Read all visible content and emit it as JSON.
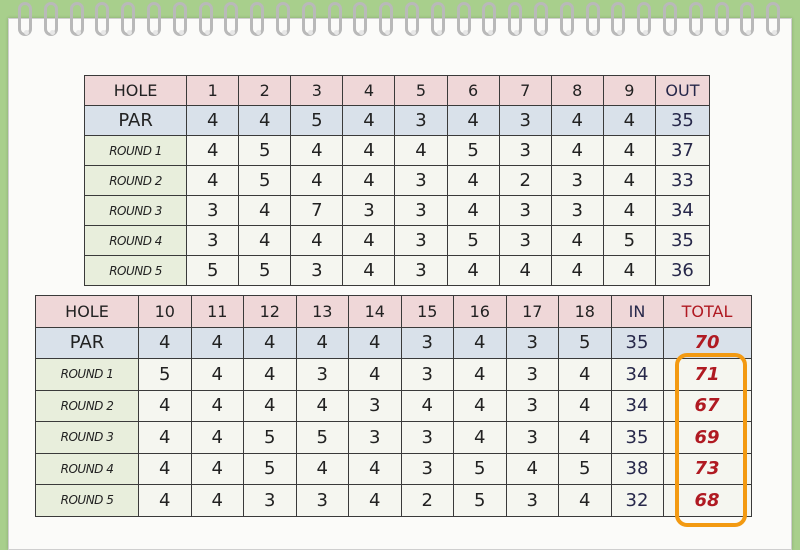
{
  "front_nine": {
    "header": [
      "HOLE",
      "1",
      "2",
      "3",
      "4",
      "5",
      "6",
      "7",
      "8",
      "9",
      "OUT"
    ],
    "par": [
      "PAR",
      "4",
      "4",
      "5",
      "4",
      "3",
      "4",
      "3",
      "4",
      "4",
      "35"
    ],
    "rounds": [
      [
        "ROUND 1",
        "4",
        "5",
        "4",
        "4",
        "4",
        "5",
        "3",
        "4",
        "4",
        "37"
      ],
      [
        "ROUND 2",
        "4",
        "5",
        "4",
        "4",
        "3",
        "4",
        "2",
        "3",
        "4",
        "33"
      ],
      [
        "ROUND 3",
        "3",
        "4",
        "7",
        "3",
        "3",
        "4",
        "3",
        "3",
        "4",
        "34"
      ],
      [
        "ROUND 4",
        "3",
        "4",
        "4",
        "4",
        "3",
        "5",
        "3",
        "4",
        "5",
        "35"
      ],
      [
        "ROUND 5",
        "5",
        "5",
        "3",
        "4",
        "3",
        "4",
        "4",
        "4",
        "4",
        "36"
      ]
    ]
  },
  "back_nine": {
    "header": [
      "HOLE",
      "10",
      "11",
      "12",
      "13",
      "14",
      "15",
      "16",
      "17",
      "18",
      "IN",
      "TOTAL"
    ],
    "par": [
      "PAR",
      "4",
      "4",
      "4",
      "4",
      "4",
      "3",
      "4",
      "3",
      "5",
      "35",
      "70"
    ],
    "rounds": [
      [
        "ROUND 1",
        "5",
        "4",
        "4",
        "3",
        "4",
        "3",
        "4",
        "3",
        "4",
        "34",
        "71"
      ],
      [
        "ROUND 2",
        "4",
        "4",
        "4",
        "4",
        "3",
        "4",
        "4",
        "3",
        "4",
        "34",
        "67"
      ],
      [
        "ROUND 3",
        "4",
        "4",
        "5",
        "5",
        "3",
        "3",
        "4",
        "3",
        "4",
        "35",
        "69"
      ],
      [
        "ROUND 4",
        "4",
        "4",
        "5",
        "4",
        "4",
        "3",
        "5",
        "4",
        "5",
        "38",
        "73"
      ],
      [
        "ROUND 5",
        "4",
        "4",
        "3",
        "3",
        "4",
        "2",
        "5",
        "3",
        "4",
        "32",
        "68"
      ]
    ]
  },
  "colors": {
    "background": "#a8cf8c",
    "hole_row": "#efd7d8",
    "par_row": "#d9e1ea",
    "total_text": "#b01a22",
    "highlight": "#f39a12"
  }
}
